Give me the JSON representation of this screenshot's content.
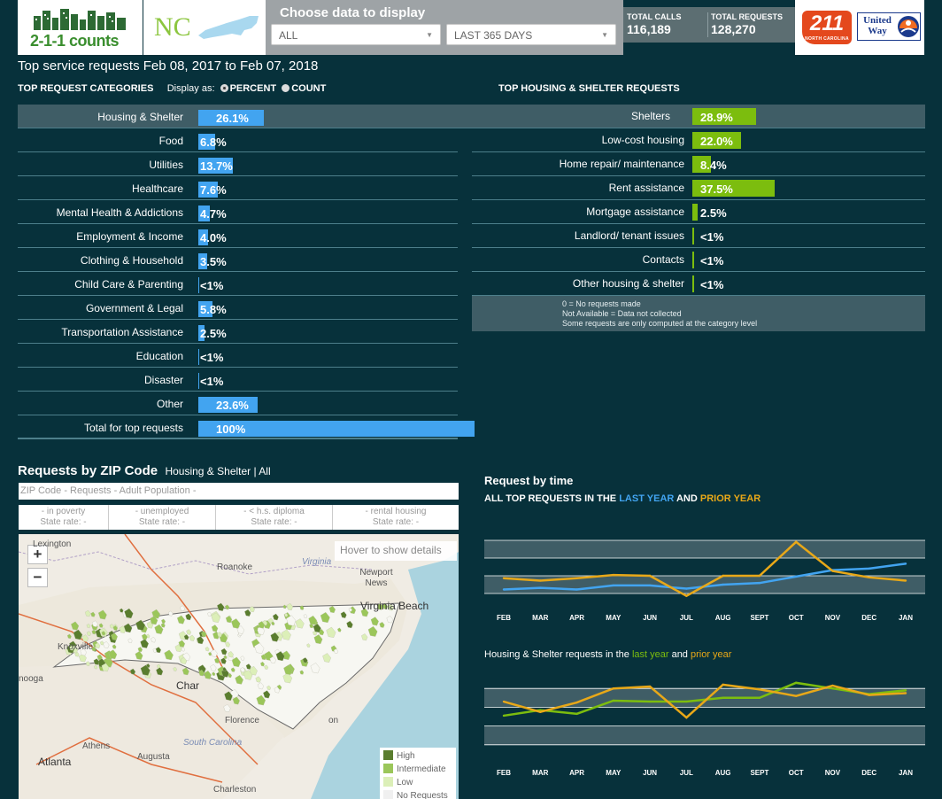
{
  "header": {
    "logo_text": "2-1-1 counts",
    "state": "NC",
    "filter_title": "Choose data to display",
    "filter_category": "ALL",
    "filter_range": "LAST 365 DAYS",
    "stats": [
      {
        "label": "TOTAL CALLS",
        "value": "116,189"
      },
      {
        "label": "TOTAL REQUESTS",
        "value": "128,270"
      }
    ],
    "badge_211": "211",
    "badge_211_sub": "NORTH CAROLINA",
    "united_way": "United Way",
    "colors": {
      "accent_green": "#8cc63f",
      "bar_blue": "#42a4f0",
      "bar_green": "#7cbd0e",
      "bg": "#07313b"
    }
  },
  "top": {
    "title": "Top service requests Feb 08, 2017 to Feb 07, 2018",
    "categories_heading": "TOP REQUEST CATEGORIES",
    "display_as": "Display as:",
    "option_percent": "PERCENT",
    "option_count": "COUNT",
    "selected_option": "PERCENT",
    "categories": [
      {
        "label": "Housing & Shelter",
        "value": "26.1%",
        "pct": 26.1
      },
      {
        "label": "Food",
        "value": "6.8%",
        "pct": 6.8
      },
      {
        "label": "Utilities",
        "value": "13.7%",
        "pct": 13.7
      },
      {
        "label": "Healthcare",
        "value": "7.6%",
        "pct": 7.6
      },
      {
        "label": "Mental Health & Addictions",
        "value": "4.7%",
        "pct": 4.7
      },
      {
        "label": "Employment & Income",
        "value": "4.0%",
        "pct": 4.0
      },
      {
        "label": "Clothing & Household",
        "value": "3.5%",
        "pct": 3.5
      },
      {
        "label": "Child Care & Parenting",
        "value": "<1%",
        "pct": 0
      },
      {
        "label": "Government & Legal",
        "value": "5.8%",
        "pct": 5.8
      },
      {
        "label": "Transportation Assistance",
        "value": "2.5%",
        "pct": 2.5
      },
      {
        "label": "Education",
        "value": "<1%",
        "pct": 0
      },
      {
        "label": "Disaster",
        "value": "<1%",
        "pct": 0
      },
      {
        "label": "Other",
        "value": "23.6%",
        "pct": 23.6
      },
      {
        "label": "Total for top requests",
        "value": "100%",
        "pct": 100
      }
    ],
    "housing_heading": "TOP HOUSING & SHELTER REQUESTS",
    "housing": [
      {
        "label": "Shelters",
        "value": "28.9%",
        "pct": 28.9
      },
      {
        "label": "Low-cost housing",
        "value": "22.0%",
        "pct": 22.0
      },
      {
        "label": "Home repair/ maintenance",
        "value": "8.4%",
        "pct": 8.4
      },
      {
        "label": "Rent assistance",
        "value": "37.5%",
        "pct": 37.5
      },
      {
        "label": "Mortgage assistance",
        "value": "2.5%",
        "pct": 2.5
      },
      {
        "label": "Landlord/ tenant issues",
        "value": "<1%",
        "pct": 0
      },
      {
        "label": "Contacts",
        "value": "<1%",
        "pct": 0
      },
      {
        "label": "Other housing & shelter",
        "value": "<1%",
        "pct": 0
      }
    ],
    "notes": [
      "0 = No requests made",
      "Not Available = Data not collected",
      "Some requests are only computed at the category level"
    ]
  },
  "zip": {
    "title": "Requests by ZIP Code",
    "subtitle": "Housing & Shelter | All",
    "info_bar": "ZIP Code  -  Requests  -  Adult Population  -",
    "stats": [
      {
        "line1": "- in poverty",
        "line2": "State rate: -"
      },
      {
        "line1": "- unemployed",
        "line2": "State rate: -"
      },
      {
        "line1": "- < h.s. diploma",
        "line2": "State rate: -"
      },
      {
        "line1": "- rental housing",
        "line2": "State rate: -"
      }
    ],
    "hover_hint": "Hover to show details",
    "zoom_in": "+",
    "zoom_out": "−",
    "map_labels": [
      "Lexington",
      "Roanoke",
      "Virginia",
      "Newport News",
      "Virginia Beach",
      "Knoxville",
      "nooga",
      "Char",
      "Florence",
      "South Carolina",
      "Athens",
      "Augusta",
      "Atlanta",
      "Charleston",
      "on"
    ],
    "legend": [
      {
        "label": "High",
        "color": "#5a7d2e"
      },
      {
        "label": "Intermediate",
        "color": "#9bc65a"
      },
      {
        "label": "Low",
        "color": "#dcefb8"
      },
      {
        "label": "No Requests",
        "color": "#f0f0f0"
      }
    ]
  },
  "time": {
    "title": "Request by time",
    "chart1_prefix": "ALL TOP REQUESTS IN THE ",
    "chart1_last": "LAST YEAR",
    "chart1_and": " AND ",
    "chart1_prior": "PRIOR YEAR",
    "chart2_prefix": "Housing & Shelter requests in the ",
    "chart2_last": "last year",
    "chart2_and": " and ",
    "chart2_prior": "prior year"
  },
  "chart_data": [
    {
      "type": "line",
      "title": "ALL TOP REQUESTS IN THE LAST YEAR AND PRIOR YEAR",
      "categories": [
        "FEB",
        "MAR",
        "APR",
        "MAY",
        "JUN",
        "JUL",
        "AUG",
        "SEPT",
        "OCT",
        "NOV",
        "DEC",
        "JAN"
      ],
      "series": [
        {
          "name": "LAST YEAR",
          "color": "#42a4f0",
          "values": [
            1.7,
            1.9,
            1.7,
            2.2,
            2.2,
            1.8,
            2.3,
            2.5,
            3.3,
            4.1,
            4.3,
            4.9
          ]
        },
        {
          "name": "PRIOR YEAR",
          "color": "#e8a818",
          "values": [
            3.1,
            2.8,
            3.1,
            3.5,
            3.4,
            0.9,
            3.4,
            3.4,
            7.6,
            4.0,
            3.2,
            2.8
          ]
        }
      ],
      "ylim": [
        -1,
        10
      ],
      "grid": true
    },
    {
      "type": "line",
      "title": "Housing & Shelter requests in the last year and prior year",
      "categories": [
        "FEB",
        "MAR",
        "APR",
        "MAY",
        "JUN",
        "JUL",
        "AUG",
        "SEPT",
        "OCT",
        "NOV",
        "DEC",
        "JAN"
      ],
      "series": [
        {
          "name": "last year",
          "color": "#7cbd0e",
          "values": [
            5.1,
            5.7,
            5.3,
            6.7,
            6.6,
            6.6,
            7.0,
            7.0,
            8.6,
            8.0,
            7.4,
            7.8
          ]
        },
        {
          "name": "prior year",
          "color": "#e8a818",
          "values": [
            6.6,
            5.5,
            6.5,
            8.0,
            8.2,
            4.9,
            8.4,
            7.9,
            7.2,
            8.3,
            7.3,
            7.5
          ]
        }
      ],
      "ylim": [
        0,
        10
      ],
      "grid": true
    }
  ]
}
